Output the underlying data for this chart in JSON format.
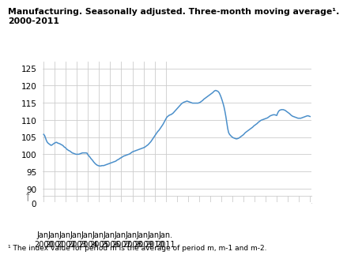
{
  "title": "Manufacturing. Seasonally adjusted. Three-month moving average¹.\n2000-2011",
  "footnote": "¹ The index value for period m is the average of period m, m-1 and m-2.",
  "line_color": "#4b8fca",
  "background_color": "#ffffff",
  "grid_color": "#cccccc",
  "x_labels": [
    "Jan.\n2000",
    "Jan.\n2001",
    "Jan.\n2002",
    "Jan.\n2003",
    "Jan.\n2004",
    "Jan.\n2005",
    "Jan.\n2006",
    "Jan.\n2007",
    "Jan.\n2008",
    "Jan.\n2009",
    "Jan.\n2010",
    "Jan.\n2011"
  ],
  "yticks_main": [
    90,
    95,
    100,
    105,
    110,
    115,
    120,
    125
  ],
  "yticks_zero": [
    0
  ],
  "values": [
    105.8,
    105.5,
    104.8,
    104.0,
    103.5,
    103.2,
    103.0,
    102.8,
    102.6,
    102.7,
    102.9,
    103.1,
    103.3,
    103.4,
    103.5,
    103.3,
    103.2,
    103.1,
    103.0,
    102.8,
    102.7,
    102.5,
    102.2,
    102.0,
    101.8,
    101.5,
    101.3,
    101.1,
    101.0,
    100.8,
    100.6,
    100.4,
    100.3,
    100.2,
    100.1,
    100.0,
    100.0,
    100.0,
    100.0,
    100.1,
    100.2,
    100.3,
    100.4,
    100.4,
    100.4,
    100.4,
    100.4,
    100.3,
    99.8,
    99.5,
    99.2,
    98.8,
    98.5,
    98.2,
    97.8,
    97.5,
    97.2,
    97.0,
    96.8,
    96.7,
    96.6,
    96.6,
    96.6,
    96.7,
    96.7,
    96.7,
    96.8,
    96.9,
    97.0,
    97.1,
    97.2,
    97.3,
    97.4,
    97.5,
    97.6,
    97.7,
    97.8,
    97.9,
    98.0,
    98.2,
    98.4,
    98.5,
    98.7,
    98.9,
    99.0,
    99.2,
    99.4,
    99.5,
    99.6,
    99.7,
    99.8,
    99.9,
    100.0,
    100.1,
    100.3,
    100.5,
    100.7,
    100.8,
    100.9,
    101.0,
    101.1,
    101.2,
    101.3,
    101.4,
    101.5,
    101.6,
    101.7,
    101.8,
    101.9,
    102.0,
    102.2,
    102.4,
    102.6,
    102.8,
    103.1,
    103.4,
    103.7,
    104.1,
    104.5,
    104.9,
    105.3,
    105.7,
    106.1,
    106.5,
    106.8,
    107.1,
    107.5,
    107.9,
    108.3,
    108.7,
    109.2,
    109.7,
    110.2,
    110.7,
    111.0,
    111.2,
    111.4,
    111.5,
    111.6,
    111.8,
    112.0,
    112.3,
    112.6,
    112.9,
    113.2,
    113.5,
    113.8,
    114.1,
    114.4,
    114.7,
    114.9,
    115.1,
    115.2,
    115.3,
    115.4,
    115.5,
    115.4,
    115.3,
    115.2,
    115.1,
    115.0,
    114.9,
    114.9,
    114.9,
    114.9,
    114.9,
    114.9,
    114.9,
    115.0,
    115.1,
    115.3,
    115.5,
    115.7,
    116.0,
    116.2,
    116.4,
    116.6,
    116.8,
    117.0,
    117.2,
    117.4,
    117.6,
    117.8,
    118.0,
    118.3,
    118.5,
    118.6,
    118.5,
    118.4,
    118.2,
    117.8,
    117.2,
    116.5,
    115.7,
    114.8,
    113.8,
    112.5,
    111.0,
    109.3,
    107.5,
    106.3,
    105.8,
    105.5,
    105.2,
    105.0,
    104.8,
    104.7,
    104.6,
    104.5,
    104.5,
    104.6,
    104.7,
    104.9,
    105.1,
    105.3,
    105.5,
    105.7,
    106.0,
    106.3,
    106.5,
    106.7,
    106.9,
    107.1,
    107.3,
    107.5,
    107.7,
    107.9,
    108.2,
    108.4,
    108.6,
    108.8,
    109.0,
    109.3,
    109.5,
    109.7,
    109.9,
    110.0,
    110.1,
    110.2,
    110.3,
    110.4,
    110.5,
    110.6,
    110.8,
    111.0,
    111.2,
    111.3,
    111.4,
    111.5,
    111.5,
    111.5,
    111.4,
    111.3,
    112.0,
    112.5,
    112.8,
    112.9,
    113.0,
    113.0,
    113.0,
    112.9,
    112.8,
    112.6,
    112.4,
    112.2,
    112.0,
    111.8,
    111.5,
    111.3,
    111.1,
    111.0,
    110.9,
    110.8,
    110.7,
    110.6,
    110.5,
    110.5,
    110.5,
    110.5,
    110.6,
    110.7,
    110.8,
    110.9,
    111.0,
    111.1,
    111.2,
    111.2,
    111.1,
    111.0
  ]
}
